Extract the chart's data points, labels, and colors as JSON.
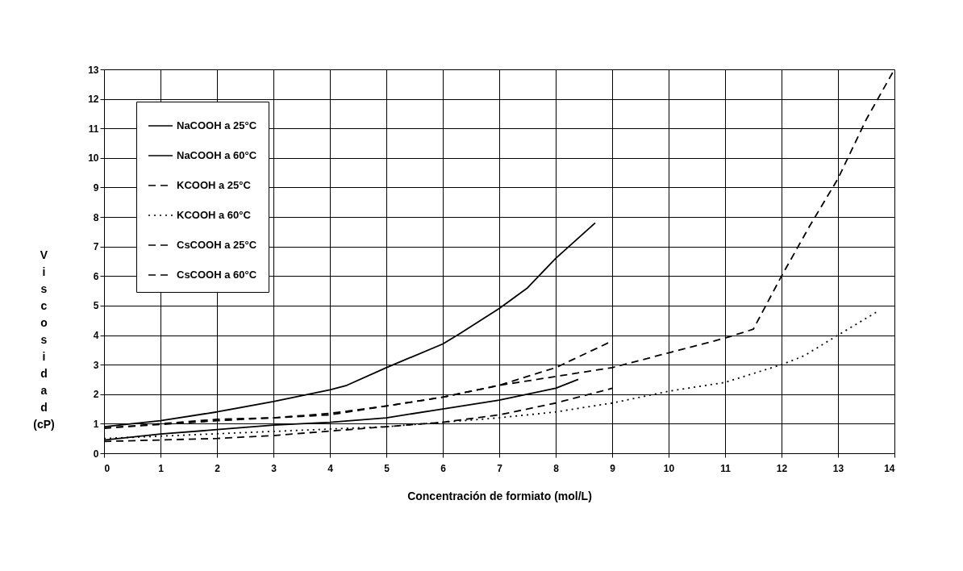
{
  "chart_data": {
    "type": "line",
    "xlabel": "Concentración de formiato (mol/L)",
    "ylabel": "Viscosidad (cP)",
    "xlim": [
      0,
      14
    ],
    "xticks": [
      0,
      1,
      2,
      3,
      4,
      5,
      6,
      7,
      8,
      9,
      10,
      11,
      12,
      13,
      14
    ],
    "ylim": [
      0,
      13
    ],
    "yticks": [
      0,
      1,
      2,
      3,
      4,
      5,
      6,
      7,
      8,
      9,
      10,
      11,
      12,
      13
    ],
    "grid": true,
    "legend": "top left",
    "marker": "none",
    "series": [
      {
        "name": "NaCOOH a 25°C",
        "color": "#000000",
        "line_style": "solid",
        "x": [
          0,
          1,
          2,
          3,
          4,
          4.3,
          5,
          6,
          6.3,
          7,
          7.5,
          8,
          8.7
        ],
        "values": [
          0.9,
          1.1,
          1.4,
          1.75,
          2.15,
          2.3,
          2.9,
          3.7,
          4.05,
          4.9,
          5.6,
          6.6,
          7.8
        ]
      },
      {
        "name": "NaCOOH a 60°C",
        "color": "#000000",
        "line_style": "solid",
        "x": [
          0,
          1,
          2,
          3,
          4,
          5,
          6,
          7,
          8,
          8.4
        ],
        "values": [
          0.45,
          0.65,
          0.8,
          0.95,
          1.05,
          1.2,
          1.5,
          1.8,
          2.2,
          2.5
        ]
      },
      {
        "name": "KCOOH a 25°C",
        "color": "#000000",
        "line_style": "dashed",
        "x": [
          0,
          1,
          2,
          3,
          4,
          5,
          6,
          7,
          8,
          9,
          10,
          11,
          11.5,
          12,
          12.5,
          13,
          13.5,
          14
        ],
        "values": [
          0.85,
          1.0,
          1.15,
          1.2,
          1.35,
          1.6,
          1.9,
          2.3,
          2.6,
          2.9,
          3.4,
          3.9,
          4.2,
          6.0,
          7.7,
          9.3,
          11.3,
          13
        ]
      },
      {
        "name": "KCOOH a 60°C",
        "color": "#000000",
        "line_style": "dotted",
        "x": [
          0,
          5,
          7,
          8,
          9,
          10,
          11,
          12,
          12.4,
          13,
          13.7
        ],
        "values": [
          0.5,
          0.9,
          1.2,
          1.4,
          1.7,
          2.1,
          2.4,
          3.0,
          3.3,
          4.0,
          4.8
        ]
      },
      {
        "name": "CsCOOH a 25°C",
        "color": "#000000",
        "line_style": "dashed",
        "x": [
          0,
          2,
          4,
          5,
          6,
          7,
          8,
          9
        ],
        "values": [
          0.85,
          1.1,
          1.3,
          1.6,
          1.9,
          2.3,
          2.9,
          3.8
        ]
      },
      {
        "name": "CsCOOH a 60°C",
        "color": "#000000",
        "line_style": "dashed",
        "x": [
          0,
          2,
          3,
          4,
          5,
          6,
          7,
          8,
          9
        ],
        "values": [
          0.4,
          0.5,
          0.6,
          0.75,
          0.9,
          1.05,
          1.3,
          1.7,
          2.2
        ]
      }
    ]
  }
}
